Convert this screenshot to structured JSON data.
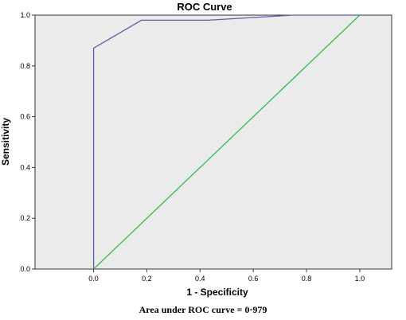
{
  "chart_data": {
    "type": "line",
    "title": "ROC Curve",
    "xlabel": "1 - Specificity",
    "ylabel": "Sensitivity",
    "xlim": [
      -0.22,
      1.12
    ],
    "ylim": [
      0,
      1.0
    ],
    "xticks": [
      "0.0",
      "0.2",
      "0.4",
      "0.6",
      "0.8",
      "1.0"
    ],
    "xtick_values": [
      0.0,
      0.2,
      0.4,
      0.6,
      0.8,
      1.0
    ],
    "yticks": [
      "0.0",
      "0.2",
      "0.4",
      "0.6",
      "0.8",
      "1.0"
    ],
    "ytick_values": [
      0.0,
      0.2,
      0.4,
      0.6,
      0.8,
      1.0
    ],
    "grid": false,
    "background_color": "#ebebeb",
    "series": [
      {
        "color": "#5563a8",
        "x": [
          0.0,
          0.0,
          0.18,
          0.43,
          0.75,
          1.0
        ],
        "y": [
          0.0,
          0.87,
          0.98,
          0.98,
          1.0,
          1.0
        ]
      },
      {
        "color": "#2ebd4b",
        "x": [
          0.0,
          1.0
        ],
        "y": [
          0.0,
          1.0
        ]
      }
    ]
  },
  "caption": "Area under ROC curve = 0·979"
}
